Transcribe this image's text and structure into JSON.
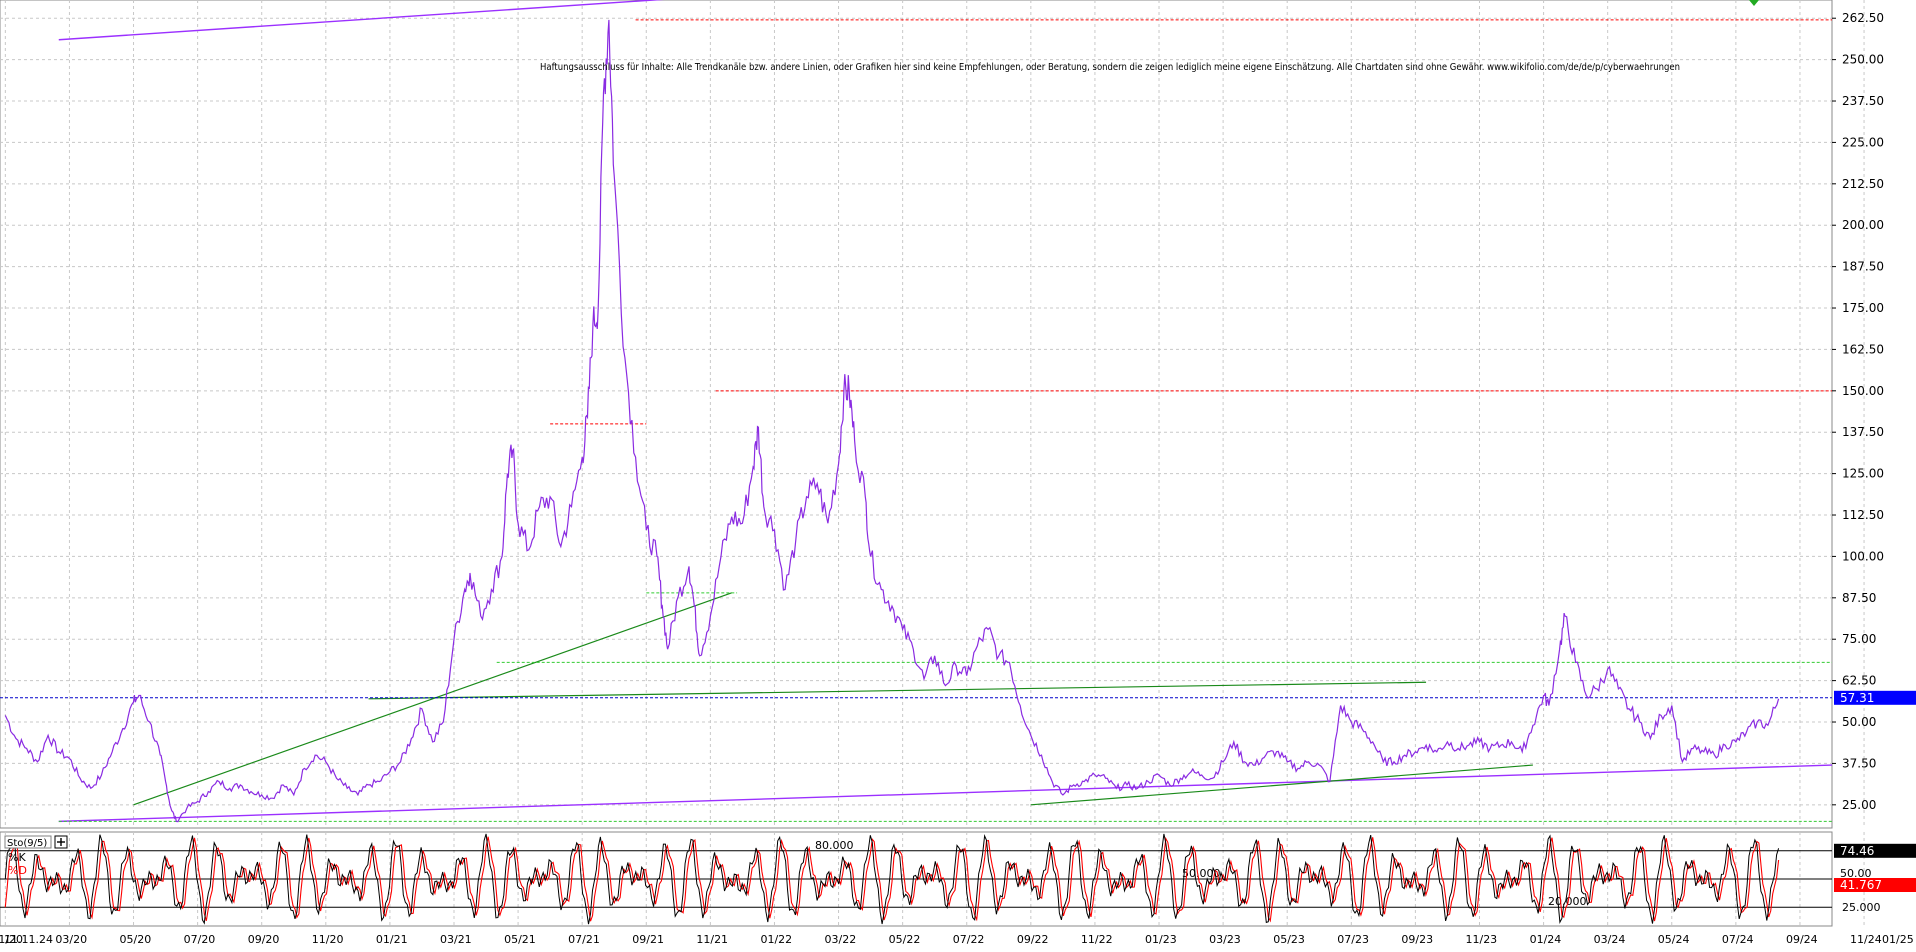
{
  "disclaimer": "Haftungsausschluss für Inhalte: Alle Trendkanäle bzw. andere Linien, oder Grafiken hier sind keine Empfehlungen, oder Beratung, sondern die zeigen lediglich meine eigene Einschätzung. Alle Chartdaten sind ohne Gewähr. www.wikifolio.com/de/de/p/cyberwaehrungen",
  "colors": {
    "price_line": "#8a2be2",
    "channel_line": "#9b30ff",
    "trend_line": "#1a8a1a",
    "resistance_line": "#ff0000",
    "support_line": "#33cc33",
    "current_line": "#0000cc",
    "k_line": "#000000",
    "d_line": "#ff0000",
    "grid": "#c8c8c8",
    "badge_blue": "#0000ff",
    "badge_red": "#ff0000",
    "badge_black": "#000000"
  },
  "chart_data": {
    "type": "line",
    "price": {
      "ylim": [
        18,
        268
      ],
      "ticks": [
        "262.50",
        "250.00",
        "237.50",
        "225.00",
        "212.50",
        "200.00",
        "187.50",
        "175.00",
        "162.50",
        "150.00",
        "137.50",
        "125.00",
        "112.50",
        "100.00",
        "87.50",
        "75.00",
        "62.50",
        "50.00",
        "37.50",
        "25.00"
      ],
      "current_value": "57.31",
      "series": [
        {
          "values": [
            [
              0,
              52
            ],
            [
              2,
              45
            ],
            [
              4,
              42
            ],
            [
              6,
              38
            ],
            [
              8,
              46
            ],
            [
              10,
              41
            ],
            [
              12,
              39
            ],
            [
              14,
              33
            ],
            [
              16,
              30
            ],
            [
              18,
              34
            ],
            [
              20,
              41
            ],
            [
              22,
              48
            ],
            [
              24,
              56
            ],
            [
              25,
              58
            ],
            [
              27,
              50
            ],
            [
              29,
              40
            ],
            [
              30,
              32
            ],
            [
              31,
              24
            ],
            [
              32,
              20
            ],
            [
              34,
              24
            ],
            [
              36,
              26
            ],
            [
              38,
              29
            ],
            [
              40,
              32
            ],
            [
              42,
              30
            ],
            [
              44,
              31
            ],
            [
              46,
              29
            ],
            [
              48,
              28
            ],
            [
              50,
              27
            ],
            [
              52,
              31
            ],
            [
              54,
              28
            ],
            [
              56,
              36
            ],
            [
              58,
              40
            ],
            [
              60,
              38
            ],
            [
              62,
              33
            ],
            [
              64,
              30
            ],
            [
              66,
              28
            ],
            [
              68,
              31
            ],
            [
              70,
              32
            ],
            [
              72,
              35
            ],
            [
              74,
              38
            ],
            [
              76,
              45
            ],
            [
              78,
              54
            ],
            [
              80,
              44
            ],
            [
              82,
              50
            ],
            [
              84,
              75
            ],
            [
              86,
              90
            ],
            [
              87,
              95
            ],
            [
              89,
              82
            ],
            [
              91,
              90
            ],
            [
              93,
              100
            ],
            [
              94,
              125
            ],
            [
              95,
              132
            ],
            [
              96,
              110
            ],
            [
              98,
              102
            ],
            [
              100,
              115
            ],
            [
              102,
              118
            ],
            [
              104,
              103
            ],
            [
              106,
              115
            ],
            [
              108,
              130
            ],
            [
              109,
              142
            ],
            [
              110,
              170
            ],
            [
              111,
              175
            ],
            [
              112,
              240
            ],
            [
              113,
              262
            ],
            [
              114,
              215
            ],
            [
              116,
              160
            ],
            [
              118,
              130
            ],
            [
              120,
              108
            ],
            [
              122,
              100
            ],
            [
              123,
              85
            ],
            [
              124,
              72
            ],
            [
              126,
              88
            ],
            [
              128,
              97
            ],
            [
              129,
              85
            ],
            [
              130,
              70
            ],
            [
              132,
              82
            ],
            [
              134,
              100
            ],
            [
              136,
              112
            ],
            [
              138,
              110
            ],
            [
              140,
              127
            ],
            [
              141,
              139
            ],
            [
              142,
              115
            ],
            [
              144,
              108
            ],
            [
              146,
              90
            ],
            [
              148,
              105
            ],
            [
              150,
              118
            ],
            [
              152,
              122
            ],
            [
              154,
              110
            ],
            [
              156,
              128
            ],
            [
              157,
              150
            ],
            [
              158,
              150
            ],
            [
              159,
              135
            ],
            [
              161,
              118
            ],
            [
              162,
              100
            ],
            [
              164,
              90
            ],
            [
              166,
              85
            ],
            [
              168,
              78
            ],
            [
              170,
              72
            ],
            [
              172,
              63
            ],
            [
              174,
              70
            ],
            [
              176,
              61
            ],
            [
              178,
              67
            ],
            [
              180,
              64
            ],
            [
              182,
              73
            ],
            [
              184,
              78
            ],
            [
              186,
              70
            ],
            [
              188,
              68
            ],
            [
              190,
              55
            ],
            [
              192,
              46
            ],
            [
              194,
              40
            ],
            [
              196,
              32
            ],
            [
              198,
              28
            ],
            [
              200,
              31
            ],
            [
              202,
              32
            ],
            [
              204,
              34
            ],
            [
              206,
              33
            ],
            [
              208,
              30
            ],
            [
              210,
              31
            ],
            [
              212,
              30
            ],
            [
              214,
              32
            ],
            [
              216,
              34
            ],
            [
              218,
              31
            ],
            [
              220,
              33
            ],
            [
              222,
              35
            ],
            [
              224,
              34
            ],
            [
              226,
              33
            ],
            [
              228,
              38
            ],
            [
              230,
              44
            ],
            [
              232,
              38
            ],
            [
              234,
              37
            ],
            [
              236,
              40
            ],
            [
              238,
              41
            ],
            [
              240,
              38
            ],
            [
              242,
              36
            ],
            [
              244,
              38
            ],
            [
              246,
              37
            ],
            [
              248,
              32
            ],
            [
              250,
              55
            ],
            [
              252,
              50
            ],
            [
              254,
              48
            ],
            [
              256,
              44
            ],
            [
              258,
              38
            ],
            [
              260,
              38
            ],
            [
              262,
              40
            ],
            [
              264,
              41
            ],
            [
              266,
              43
            ],
            [
              268,
              41
            ],
            [
              270,
              44
            ],
            [
              272,
              42
            ],
            [
              274,
              43
            ],
            [
              276,
              44
            ],
            [
              278,
              42
            ],
            [
              280,
              43
            ],
            [
              282,
              44
            ],
            [
              284,
              41
            ],
            [
              286,
              49
            ],
            [
              288,
              58
            ],
            [
              289,
              55
            ],
            [
              291,
              72
            ],
            [
              292,
              82
            ],
            [
              294,
              68
            ],
            [
              296,
              58
            ],
            [
              298,
              60
            ],
            [
              300,
              66
            ],
            [
              302,
              60
            ],
            [
              304,
              54
            ],
            [
              306,
              50
            ],
            [
              308,
              45
            ],
            [
              310,
              52
            ],
            [
              312,
              55
            ],
            [
              314,
              38
            ],
            [
              316,
              42
            ],
            [
              318,
              41
            ],
            [
              320,
              40
            ],
            [
              322,
              43
            ],
            [
              324,
              44
            ],
            [
              326,
              47
            ],
            [
              328,
              50
            ],
            [
              330,
              49
            ],
            [
              332,
              57
            ]
          ]
        }
      ],
      "annotations": {
        "upper_channel": [
          [
            10,
            256
          ],
          [
            140,
            270
          ]
        ],
        "lower_channel": [
          [
            10,
            20
          ],
          [
            342,
            37
          ]
        ],
        "trend_lines": [
          [
            [
              24,
              25
            ],
            [
              136,
              89
            ]
          ],
          [
            [
              68,
              57
            ],
            [
              266,
              62
            ]
          ],
          [
            [
              192,
              25
            ],
            [
              286,
              37
            ]
          ]
        ],
        "resistance_levels": [
          [
            [
              118,
              262
            ],
            [
              342,
              262
            ]
          ],
          [
            [
              133,
              150
            ],
            [
              342,
              150
            ]
          ],
          [
            [
              102,
              140
            ],
            [
              120,
              140
            ]
          ]
        ],
        "support_levels": [
          [
            [
              120,
              89
            ],
            [
              137,
              89
            ]
          ],
          [
            [
              92,
              68
            ],
            [
              342,
              68
            ]
          ],
          [
            [
              10,
              20
            ],
            [
              342,
              20
            ]
          ]
        ]
      }
    },
    "stochastic": {
      "label": "Sto(9/5)",
      "k_label": "%K",
      "d_label": "%D",
      "ylim": [
        0,
        100
      ],
      "levels": [
        80,
        50,
        20
      ],
      "level_labels": [
        "80.000",
        "50.000",
        "20.000"
      ],
      "right_ticks": [
        "25.000"
      ],
      "k_value": "74.46",
      "d_value": "41.767",
      "mid_value": "50.00"
    },
    "x_axis": {
      "ticks": [
        "11.11.24",
        "01/20",
        "03/20",
        "05/20",
        "07/20",
        "09/20",
        "11/20",
        "01/21",
        "03/21",
        "05/21",
        "07/21",
        "09/21",
        "11/21",
        "01/22",
        "03/22",
        "05/22",
        "07/22",
        "09/22",
        "11/22",
        "01/23",
        "03/23",
        "05/23",
        "07/23",
        "09/23",
        "11/23",
        "01/24",
        "03/24",
        "05/24",
        "07/24",
        "09/24",
        "11/24",
        "01/25"
      ],
      "months": [
        0,
        12,
        24,
        36,
        48,
        60,
        72,
        84,
        96,
        108,
        120,
        132,
        144,
        156,
        168,
        180,
        192,
        204,
        216,
        228,
        240,
        252,
        264,
        276,
        288,
        300,
        312,
        324,
        336,
        348,
        360
      ],
      "xlim": [
        -1,
        342
      ]
    }
  }
}
